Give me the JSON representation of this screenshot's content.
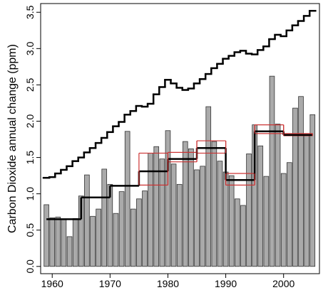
{
  "chart_data": {
    "type": "bar",
    "y_label": "Carbon Dioxide annual change (ppm)",
    "x": [
      1959,
      1960,
      1961,
      1962,
      1963,
      1964,
      1965,
      1966,
      1967,
      1968,
      1969,
      1970,
      1971,
      1972,
      1973,
      1974,
      1975,
      1976,
      1977,
      1978,
      1979,
      1980,
      1981,
      1982,
      1983,
      1984,
      1985,
      1986,
      1987,
      1988,
      1989,
      1990,
      1991,
      1992,
      1993,
      1994,
      1995,
      1996,
      1997,
      1998,
      1999,
      2000,
      2001,
      2002,
      2003,
      2004,
      2005
    ],
    "series": [
      {
        "color": "#aaaaaa",
        "values": [
          0.85,
          0.67,
          0.68,
          0.65,
          0.41,
          0.66,
          0.97,
          1.26,
          0.69,
          0.79,
          1.34,
          1.13,
          0.73,
          1.03,
          1.86,
          0.79,
          0.93,
          1.04,
          1.56,
          1.65,
          1.48,
          1.87,
          1.41,
          1.13,
          1.72,
          1.62,
          1.33,
          1.38,
          2.2,
          1.72,
          1.45,
          1.3,
          1.25,
          0.93,
          0.84,
          1.55,
          1.95,
          1.66,
          1.24,
          2.62,
          1.96,
          1.28,
          1.43,
          2.18,
          2.34,
          1.81,
          2.09
        ]
      },
      {
        "type": "step",
        "color": "#000000",
        "values": [
          1.22,
          1.23,
          1.28,
          1.33,
          1.38,
          1.45,
          1.5,
          1.57,
          1.63,
          1.7,
          1.77,
          1.85,
          1.93,
          1.99,
          2.09,
          2.14,
          2.21,
          2.2,
          2.24,
          2.37,
          2.47,
          2.57,
          2.52,
          2.46,
          2.43,
          2.45,
          2.52,
          2.58,
          2.65,
          2.73,
          2.79,
          2.86,
          2.9,
          2.95,
          2.97,
          2.93,
          2.92,
          2.98,
          3.03,
          3.13,
          3.19,
          3.17,
          3.25,
          3.32,
          3.38,
          3.45,
          3.52
        ]
      }
    ],
    "period_edges": [
      1959,
      1965,
      1970,
      1975,
      1980,
      1985,
      1990,
      1995,
      2000,
      2005
    ],
    "period_series": [
      {
        "color": "#cc3333",
        "values": [
          null,
          null,
          null,
          1.12,
          1.44,
          1.56,
          1.12,
          1.83,
          1.8
        ]
      },
      {
        "color": "#cc3333",
        "values": [
          null,
          null,
          null,
          1.56,
          1.57,
          1.73,
          1.28,
          1.95,
          1.83
        ]
      },
      {
        "color": "#000000",
        "values": [
          0.65,
          0.95,
          1.11,
          1.31,
          1.48,
          1.63,
          1.19,
          1.86,
          1.81
        ]
      }
    ],
    "xlim": [
      1958,
      2006.2
    ],
    "ylim": [
      -0.1,
      3.62
    ],
    "xticks": [
      1960,
      1970,
      1980,
      1990,
      2000
    ],
    "yticks": [
      {
        "value": 0,
        "label": "0.0"
      },
      {
        "value": 0.5,
        "label": "0.5"
      },
      {
        "value": 1,
        "label": "1.0"
      },
      {
        "value": 1.5,
        "label": "1.5"
      },
      {
        "value": 2,
        "label": "2.0"
      },
      {
        "value": 2.5,
        "label": "2.5"
      },
      {
        "value": 3,
        "label": "3.0"
      },
      {
        "value": 3.5,
        "label": "3.5"
      }
    ]
  }
}
